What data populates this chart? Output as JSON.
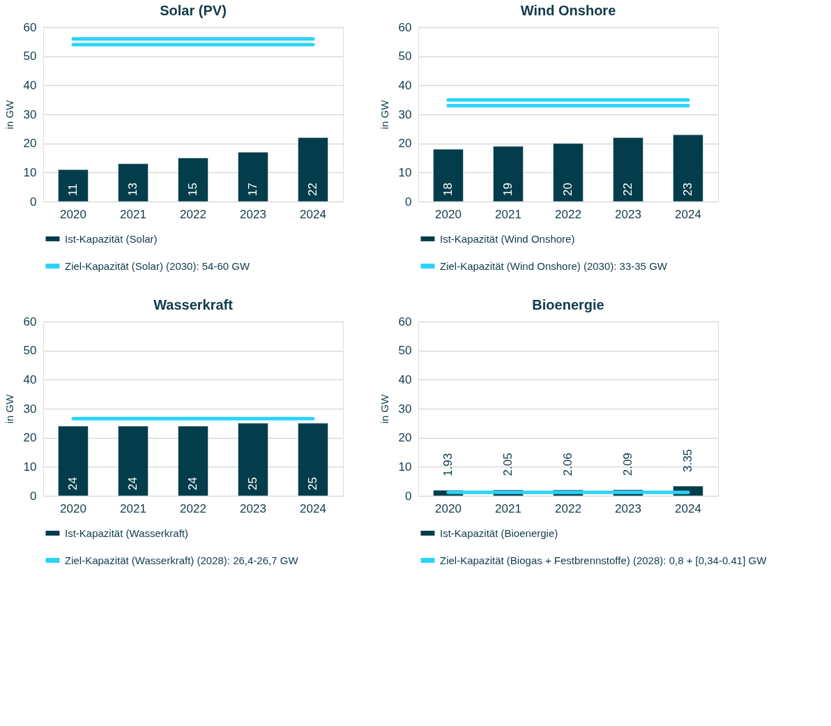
{
  "chart_data": [
    {
      "type": "bar",
      "title": "Solar (PV)",
      "ylabel": "in GW",
      "categories": [
        "2020",
        "2021",
        "2022",
        "2023",
        "2024"
      ],
      "ylim": [
        0,
        60
      ],
      "yticks": [
        0,
        10,
        20,
        30,
        40,
        50,
        60
      ],
      "grid": "y",
      "legend": "bottom",
      "series": [
        {
          "name": "Ist-Kapazität (Solar)",
          "color": "#033d4b",
          "values": [
            11,
            13,
            15,
            17,
            22
          ],
          "value_labels": [
            "11",
            "13",
            "15",
            "17",
            "22"
          ]
        },
        {
          "name": "Ziel-Kapazität (Solar) (2030): 54-60 GW",
          "type": "line",
          "color": "#2ad3f8",
          "values": [
            56,
            56,
            56,
            56,
            56
          ]
        },
        {
          "type": "line",
          "color": "#2ad3f8",
          "values": [
            54,
            54,
            54,
            54,
            54
          ]
        }
      ]
    },
    {
      "type": "bar",
      "title": "Wind Onshore",
      "ylabel": "in GW",
      "categories": [
        "2020",
        "2021",
        "2022",
        "2023",
        "2024"
      ],
      "ylim": [
        0,
        60
      ],
      "yticks": [
        0,
        10,
        20,
        30,
        40,
        50,
        60
      ],
      "grid": "y",
      "legend": "bottom",
      "series": [
        {
          "name": "Ist-Kapazität (Wind Onshore)",
          "color": "#033d4b",
          "values": [
            18,
            19,
            20,
            22,
            23
          ],
          "value_labels": [
            "18",
            "19",
            "20",
            "22",
            "23"
          ]
        },
        {
          "name": "Ziel-Kapazität (Wind Onshore) (2030): 33-35 GW",
          "type": "line",
          "color": "#2ad3f8",
          "values": [
            35,
            35,
            35,
            35,
            35
          ]
        },
        {
          "type": "line",
          "color": "#2ad3f8",
          "values": [
            33,
            33,
            33,
            33,
            33
          ]
        }
      ]
    },
    {
      "type": "bar",
      "title": "Wasserkraft",
      "ylabel": "in GW",
      "categories": [
        "2020",
        "2021",
        "2022",
        "2023",
        "2024"
      ],
      "ylim": [
        0,
        60
      ],
      "yticks": [
        0,
        10,
        20,
        30,
        40,
        50,
        60
      ],
      "grid": "y",
      "legend": "bottom",
      "series": [
        {
          "name": "Ist-Kapazität (Wasserkraft)",
          "color": "#033d4b",
          "values": [
            24,
            24,
            24,
            25,
            25
          ],
          "value_labels": [
            "24",
            "24",
            "24",
            "25",
            "25"
          ]
        },
        {
          "name": "Ziel-Kapazität (Wasserkraft) (2028): 26,4-26,7 GW",
          "type": "line",
          "color": "#2ad3f8",
          "values": [
            26.6,
            26.6,
            26.6,
            26.6,
            26.6
          ]
        }
      ]
    },
    {
      "type": "bar",
      "title": "Bioenergie",
      "ylabel": "in GW",
      "categories": [
        "2020",
        "2021",
        "2022",
        "2023",
        "2024"
      ],
      "ylim": [
        0,
        60
      ],
      "yticks": [
        0,
        10,
        20,
        30,
        40,
        50,
        60
      ],
      "grid": "y",
      "legend": "bottom",
      "series": [
        {
          "name": "Ist-Kapazität (Bioenergie)",
          "color": "#033d4b",
          "values": [
            1.93,
            2.05,
            2.06,
            2.09,
            3.35
          ],
          "value_labels": [
            "1.93",
            "2.05",
            "2.06",
            "2.09",
            "3.35"
          ]
        },
        {
          "name": "Ziel-Kapazität (Biogas + Festbrennstoffe) (2028): 0,8 + [0,34-0.41] GW",
          "type": "line",
          "color": "#2ad3f8",
          "values": [
            1.2,
            1.2,
            1.2,
            1.2,
            1.2
          ]
        }
      ]
    }
  ]
}
